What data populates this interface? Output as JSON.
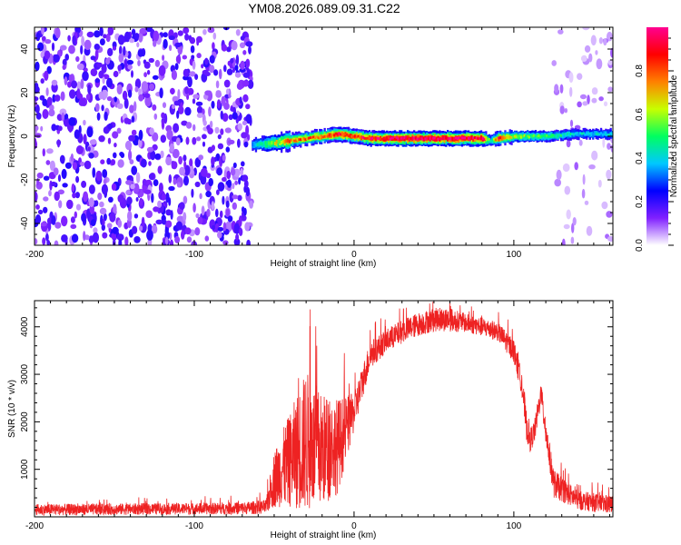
{
  "figure": {
    "title": "YM08.2026.089.09.31.C22"
  },
  "chart_data": [
    {
      "type": "heatmap",
      "xlabel": "Height of straight line (km)",
      "ylabel": "Frequency (Hz)",
      "xlim": [
        -200,
        162
      ],
      "ylim": [
        -50,
        50
      ],
      "x_ticks": [
        -200,
        -100,
        0,
        100
      ],
      "y_ticks": [
        -40,
        -20,
        0,
        20,
        40
      ],
      "colorbar": {
        "label": "Normalized spectral amplitude",
        "range": [
          0,
          1
        ],
        "ticks": [
          0.0,
          0.2,
          0.4,
          0.6,
          0.8
        ],
        "tick_labels": [
          "0.0",
          "0.2",
          "0.4",
          "0.6",
          "0.8"
        ],
        "colors": [
          "#ffffff",
          "#8020ff",
          "#0000ff",
          "#00c8ff",
          "#00ff60",
          "#c8ff00",
          "#ff8000",
          "#ff0000",
          "#ff0090"
        ]
      },
      "noise_regions": [
        {
          "x_start": -200,
          "x_end": -64,
          "mean_amplitude": 0.15,
          "max_amplitude": 0.22
        },
        {
          "x_start": 125,
          "x_end": 162,
          "mean_amplitude": 0.05,
          "max_amplitude": 0.1
        }
      ],
      "signal_band": {
        "x": [
          -64,
          -50,
          -40,
          -20,
          -10,
          0,
          10,
          30,
          50,
          70,
          80,
          85,
          90,
          100,
          120,
          140,
          162
        ],
        "center_frequency": [
          -4,
          -3,
          -2,
          0,
          1,
          0,
          -1,
          -1,
          -1,
          -1,
          -1,
          -2,
          -1,
          0,
          0,
          1,
          1
        ],
        "peak_amplitude": [
          0.35,
          0.6,
          0.75,
          0.8,
          0.9,
          0.85,
          0.9,
          1.0,
          1.0,
          1.0,
          0.95,
          0.45,
          0.85,
          0.6,
          0.5,
          0.4,
          0.4
        ]
      },
      "grid": false
    },
    {
      "type": "line",
      "xlabel": "Height of straight line (km)",
      "ylabel": "SNR (10 * v/v)",
      "xlim": [
        -200,
        162
      ],
      "ylim": [
        0,
        4550
      ],
      "x_ticks": [
        -200,
        -100,
        0,
        100
      ],
      "y_ticks": [
        1000,
        2000,
        3000,
        4000
      ],
      "series": [
        {
          "color": "#ee2222",
          "envelope_x": [
            -200,
            -150,
            -100,
            -70,
            -55,
            -50,
            -40,
            -30,
            -20,
            -10,
            0,
            10,
            20,
            30,
            40,
            50,
            60,
            70,
            80,
            90,
            100,
            105,
            108,
            110,
            113,
            117,
            120,
            125,
            140,
            162
          ],
          "envelope_mean": [
            150,
            160,
            170,
            180,
            210,
            800,
            1200,
            1600,
            1400,
            1500,
            2200,
            3400,
            3700,
            3900,
            4050,
            4150,
            4150,
            4080,
            4000,
            3900,
            3500,
            2800,
            1900,
            1600,
            1800,
            2600,
            1800,
            700,
            350,
            250
          ],
          "envelope_spread": [
            120,
            120,
            120,
            130,
            150,
            600,
            1000,
            1500,
            1200,
            1000,
            400,
            300,
            250,
            250,
            250,
            250,
            250,
            200,
            200,
            200,
            250,
            250,
            300,
            250,
            250,
            250,
            300,
            300,
            200,
            200
          ]
        }
      ],
      "grid": false
    }
  ]
}
